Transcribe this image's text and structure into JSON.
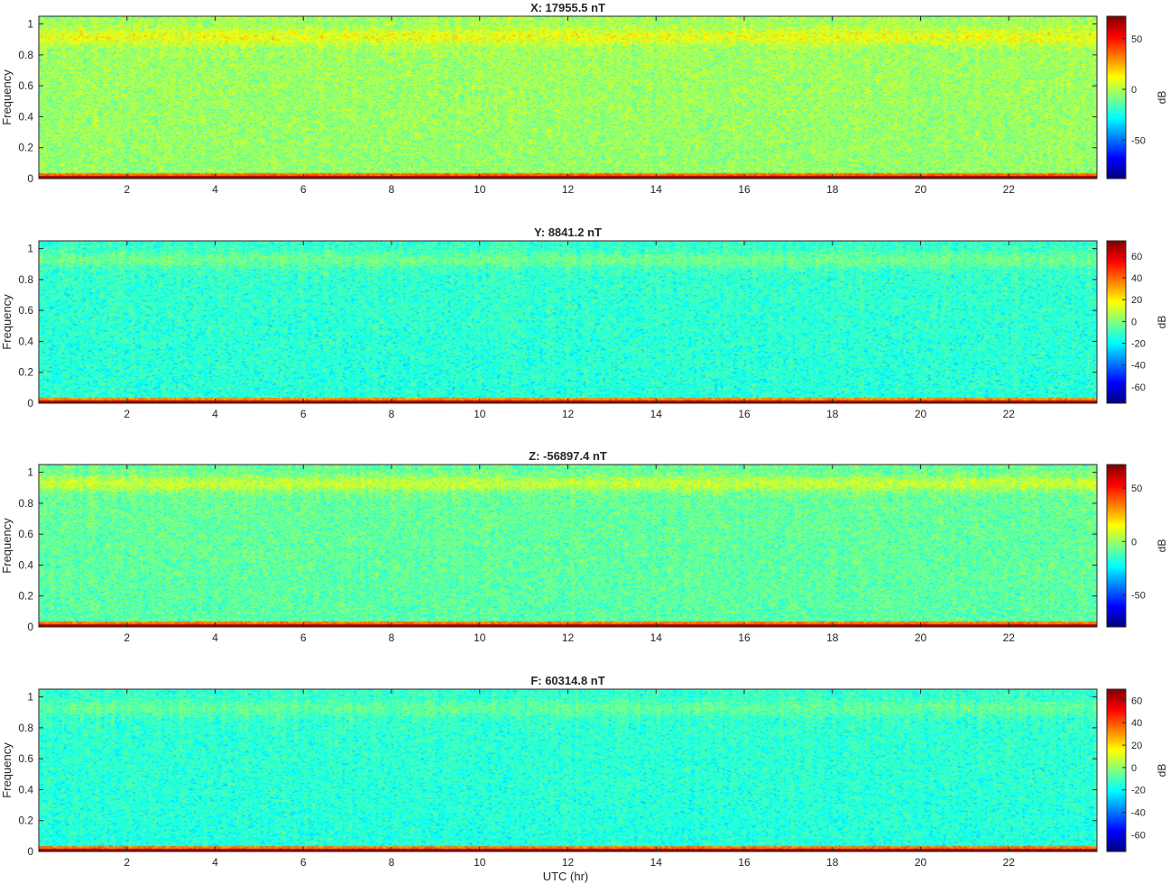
{
  "figure": {
    "xlabel": "UTC (hr)"
  },
  "colors": {
    "colormap": "jet",
    "axis": "#262626",
    "background": "#ffffff"
  },
  "chart_data": [
    {
      "type": "heatmap",
      "title": "X: 17955.5 nT",
      "ylabel": "Frequency",
      "xlabel": "",
      "xlim": [
        0,
        24
      ],
      "ylim": [
        0,
        1.05
      ],
      "x_ticks": [
        2,
        4,
        6,
        8,
        10,
        12,
        14,
        16,
        18,
        20,
        22
      ],
      "y_ticks": [
        0,
        0.2,
        0.4,
        0.6,
        0.8,
        1
      ],
      "y_tick_labels": [
        "0",
        "0.2",
        "0.4",
        "0.6",
        "0.8",
        "1"
      ],
      "colorbar": {
        "label": "dB",
        "clim": [
          -88,
          72
        ],
        "ticks": [
          -50,
          0,
          50
        ]
      },
      "intensity_profile_db": {
        "baseline": -5,
        "upper_band_center": 0.92,
        "upper_band_db": 12,
        "dc_db": 68,
        "noise_db": 13
      }
    },
    {
      "type": "heatmap",
      "title": "Y: 8841.2 nT",
      "ylabel": "Frequency",
      "xlabel": "",
      "xlim": [
        0,
        24
      ],
      "ylim": [
        0,
        1.05
      ],
      "x_ticks": [
        2,
        4,
        6,
        8,
        10,
        12,
        14,
        16,
        18,
        20,
        22
      ],
      "y_ticks": [
        0,
        0.2,
        0.4,
        0.6,
        0.8,
        1
      ],
      "y_tick_labels": [
        "0",
        "0.2",
        "0.4",
        "0.6",
        "0.8",
        "1"
      ],
      "colorbar": {
        "label": "dB",
        "clim": [
          -75,
          74
        ],
        "ticks": [
          -60,
          -40,
          -20,
          0,
          20,
          40,
          60
        ]
      },
      "intensity_profile_db": {
        "baseline": -14,
        "upper_band_center": 0.93,
        "upper_band_db": 9,
        "dc_db": 68,
        "noise_db": 11
      }
    },
    {
      "type": "heatmap",
      "title": "Z: -56897.4 nT",
      "ylabel": "Frequency",
      "xlabel": "",
      "xlim": [
        0,
        24
      ],
      "ylim": [
        0,
        1.05
      ],
      "x_ticks": [
        2,
        4,
        6,
        8,
        10,
        12,
        14,
        16,
        18,
        20,
        22
      ],
      "y_ticks": [
        0,
        0.2,
        0.4,
        0.6,
        0.8,
        1
      ],
      "y_tick_labels": [
        "0",
        "0.2",
        "0.4",
        "0.6",
        "0.8",
        "1"
      ],
      "colorbar": {
        "label": "dB",
        "clim": [
          -80,
          72
        ],
        "ticks": [
          -50,
          0,
          50
        ]
      },
      "intensity_profile_db": {
        "baseline": -10,
        "upper_band_center": 0.93,
        "upper_band_db": 14,
        "dc_db": 66,
        "noise_db": 12
      }
    },
    {
      "type": "heatmap",
      "title": "F: 60314.8 nT",
      "ylabel": "Frequency",
      "xlabel": "UTC (hr)",
      "xlim": [
        0,
        24
      ],
      "ylim": [
        0,
        1.05
      ],
      "x_ticks": [
        2,
        4,
        6,
        8,
        10,
        12,
        14,
        16,
        18,
        20,
        22
      ],
      "y_ticks": [
        0,
        0.2,
        0.4,
        0.6,
        0.8,
        1
      ],
      "y_tick_labels": [
        "0",
        "0.2",
        "0.4",
        "0.6",
        "0.8",
        "1"
      ],
      "colorbar": {
        "label": "dB",
        "clim": [
          -75,
          70
        ],
        "ticks": [
          -60,
          -40,
          -20,
          0,
          20,
          40,
          60
        ]
      },
      "intensity_profile_db": {
        "baseline": -16,
        "upper_band_center": 0.93,
        "upper_band_db": 7,
        "dc_db": 66,
        "noise_db": 10
      }
    }
  ]
}
